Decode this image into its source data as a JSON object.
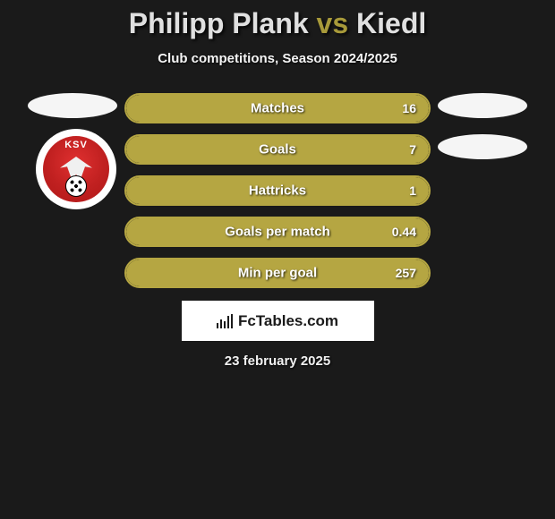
{
  "title": {
    "player1": "Philipp Plank",
    "vs": "vs",
    "player2": "Kiedl"
  },
  "subtitle": "Club competitions, Season 2024/2025",
  "stats": [
    {
      "label": "Matches",
      "left_val": "",
      "right_val": "16",
      "left_pct": 0,
      "right_pct": 100
    },
    {
      "label": "Goals",
      "left_val": "",
      "right_val": "7",
      "left_pct": 0,
      "right_pct": 100
    },
    {
      "label": "Hattricks",
      "left_val": "",
      "right_val": "1",
      "left_pct": 0,
      "right_pct": 100
    },
    {
      "label": "Goals per match",
      "left_val": "",
      "right_val": "0.44",
      "left_pct": 0,
      "right_pct": 100
    },
    {
      "label": "Min per goal",
      "left_val": "",
      "right_val": "257",
      "left_pct": 0,
      "right_pct": 100
    }
  ],
  "left_team": {
    "abbrev": "KSV"
  },
  "branding": "FcTables.com",
  "date": "23 february 2025",
  "colors": {
    "bar_border": "#b5a642",
    "bar_fill": "#b5a642",
    "title_highlight": "#a89a3a",
    "ellipse": "#f5f5f5",
    "background": "#1a1a1a",
    "text": "#ffffff"
  }
}
